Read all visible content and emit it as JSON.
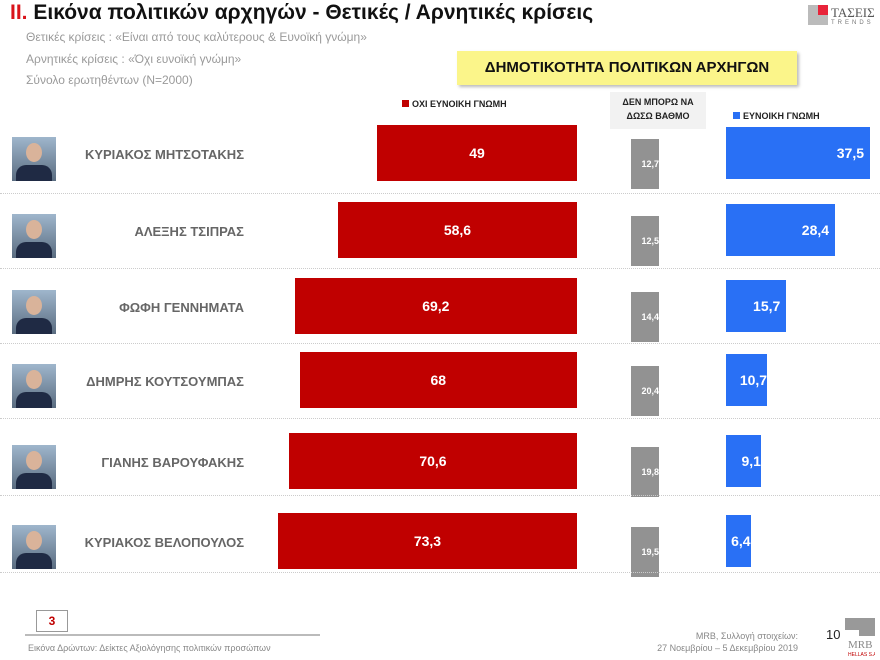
{
  "header": {
    "title_num": "II.",
    "title": "Εικόνα πολιτικών αρχηγών  - Θετικές / Αρνητικές κρίσεις",
    "subtitle_lines": [
      "Θετικές κρίσεις : «Είναι από τους καλύτερους &  Ευνοϊκή γνώμη»",
      "Αρνητικές κρίσεις : «Όχι ευνοϊκή γνώμη»",
      "Σύνολο ερωτηθέντων (N=2000)"
    ],
    "logo_text": "ΤΑΣΕΙΣ",
    "logo_sub": "TRENDS"
  },
  "chart_data": {
    "type": "bar",
    "title": "ΔΗΜΟΤΙΚΟΤΗΤΑ ΠΟΛΙΤΙΚΩΝ ΑΡΧΗΓΩΝ",
    "categories": [
      "ΚΥΡΙΑΚΟΣ ΜΗΤΣΟΤΑΚΗΣ",
      "ΑΛΕΞΗΣ ΤΣΙΠΡΑΣ",
      "ΦΩΦΗ ΓΕΝΝΗΜΑΤΑ",
      "ΔΗΜΡΗΣ ΚΟΥΤΣΟΥΜΠΑΣ",
      "ΓΙΑΝΗΣ ΒΑΡΟΥΦΑΚΗΣ",
      "ΚΥΡΙΑΚΟΣ ΒΕΛΟΠΟΥΛΟΣ"
    ],
    "series": [
      {
        "name": "ΟΧΙ ΕΥΝΟΙΚΗ ΓΝΩΜΗ",
        "color": "#c00000",
        "values": [
          49,
          58.6,
          69.2,
          68,
          70.6,
          73.3
        ],
        "labels": [
          "49",
          "58,6",
          "69,2",
          "68",
          "70,6",
          "73,3"
        ]
      },
      {
        "name": "ΔΕΝ ΜΠΟΡΩ ΝΑ ΔΩΣΩ ΒΑΘΜΟ",
        "color": "#929292",
        "values": [
          12.7,
          12.5,
          14.4,
          20.4,
          19.8,
          19.5
        ],
        "labels": [
          "12,7",
          "12,5",
          "14,4",
          "20,4",
          "19,8",
          "19,5"
        ]
      },
      {
        "name": "ΕΥΝΟΙΚΗ ΓΝΩΜΗ",
        "color": "#2970f5",
        "values": [
          37.5,
          28.4,
          15.7,
          10.7,
          9.1,
          6.4
        ],
        "labels": [
          "37,5",
          "28,4",
          "15,7",
          "10,7",
          "9,1",
          "6,4"
        ]
      }
    ],
    "legend_dk_lines": [
      "ΔΕΝ ΜΠΟΡΩ ΝΑ",
      "ΔΩΣΩ ΒΑΘΜΟ"
    ]
  },
  "footer": {
    "section_number": "3",
    "source_left": "Εικόνα Δρώντων: Δείκτες Αξιολόγησης πολιτικών προσώπων",
    "source_right_1": "MRB, Συλλογή στοιχείων:",
    "source_right_2": "27 Νοεμβρίου – 5 Δεκεμβρίου 2019",
    "page_number": "10",
    "mrb_logo": "MRB HELLAS S.A."
  }
}
